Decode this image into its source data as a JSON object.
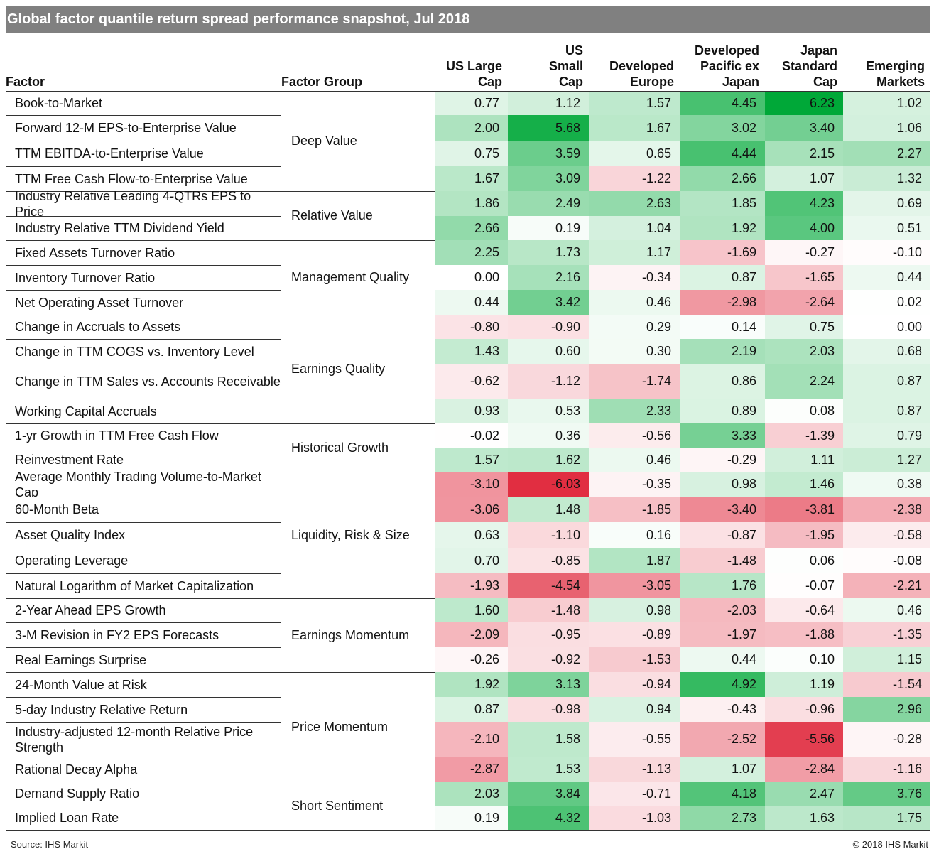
{
  "title": "Global factor quantile return spread performance snapshot, Jul 2018",
  "source": "Source: IHS Markit",
  "copyright": "© 2018 IHS Markit",
  "colors": {
    "title_bg": "#808080",
    "positive": "#00a838",
    "negative": "#e0283c",
    "neutral": "#ffffff"
  },
  "chart_data": {
    "type": "table",
    "title": "Global factor quantile return spread performance snapshot, Jul 2018",
    "columns": [
      "Factor",
      "Factor Group",
      "US Large Cap",
      "US Small Cap",
      "Developed Europe",
      "Developed Pacific ex Japan",
      "Japan Standard Cap",
      "Emerging Markets"
    ],
    "header_lines": [
      [
        "Factor"
      ],
      [
        "Factor Group"
      ],
      [
        "US Large",
        "Cap"
      ],
      [
        "US",
        "Small",
        "Cap"
      ],
      [
        "Developed",
        "Europe"
      ],
      [
        "Developed",
        "Pacific ex",
        "Japan"
      ],
      [
        "Japan",
        "Standard",
        "Cap"
      ],
      [
        "Emerging",
        "Markets"
      ]
    ],
    "groups": [
      {
        "name": "Deep Value",
        "rows": [
          {
            "factor": "Book-to-Market",
            "values": [
              0.77,
              1.12,
              1.57,
              4.45,
              6.23,
              1.02
            ]
          },
          {
            "factor": "Forward 12-M EPS-to-Enterprise Value",
            "values": [
              2.0,
              5.68,
              1.67,
              3.02,
              3.4,
              1.06
            ]
          },
          {
            "factor": "TTM EBITDA-to-Enterprise Value",
            "values": [
              0.75,
              3.59,
              0.65,
              4.44,
              2.15,
              2.27
            ]
          },
          {
            "factor": "TTM Free Cash Flow-to-Enterprise Value",
            "values": [
              1.67,
              3.09,
              -1.22,
              2.66,
              1.07,
              1.32
            ]
          }
        ]
      },
      {
        "name": "Relative Value",
        "rows": [
          {
            "factor": "Industry Relative Leading 4-QTRs EPS to Price",
            "values": [
              1.86,
              2.49,
              2.63,
              1.85,
              4.23,
              0.69
            ]
          },
          {
            "factor": "Industry Relative TTM Dividend Yield",
            "values": [
              2.66,
              0.19,
              1.04,
              1.92,
              4.0,
              0.51
            ]
          }
        ]
      },
      {
        "name": "Management Quality",
        "rows": [
          {
            "factor": "Fixed Assets Turnover Ratio",
            "values": [
              2.25,
              1.73,
              1.17,
              -1.69,
              -0.27,
              -0.1
            ]
          },
          {
            "factor": "Inventory Turnover Ratio",
            "values": [
              0.0,
              2.16,
              -0.34,
              0.87,
              -1.65,
              0.44
            ]
          },
          {
            "factor": "Net Operating Asset Turnover",
            "values": [
              0.44,
              3.42,
              0.46,
              -2.98,
              -2.64,
              0.02
            ]
          }
        ]
      },
      {
        "name": "Earnings Quality",
        "rows": [
          {
            "factor": "Change in Accruals to Assets",
            "values": [
              -0.8,
              -0.9,
              0.29,
              0.14,
              0.75,
              0.0
            ]
          },
          {
            "factor": "Change in TTM COGS vs. Inventory Level",
            "values": [
              1.43,
              0.6,
              0.3,
              2.19,
              2.03,
              0.68
            ]
          },
          {
            "factor": "Change in TTM Sales vs. Accounts Receivable",
            "values": [
              -0.62,
              -1.12,
              -1.74,
              0.86,
              2.24,
              0.87
            ]
          },
          {
            "factor": "Working Capital Accruals",
            "values": [
              0.93,
              0.53,
              2.33,
              0.89,
              0.08,
              0.87
            ]
          }
        ]
      },
      {
        "name": "Historical Growth",
        "rows": [
          {
            "factor": "1-yr Growth in TTM Free Cash Flow",
            "values": [
              -0.02,
              0.36,
              -0.56,
              3.33,
              -1.39,
              0.79
            ]
          },
          {
            "factor": "Reinvestment Rate",
            "values": [
              1.57,
              1.62,
              0.46,
              -0.29,
              1.11,
              1.27
            ]
          }
        ]
      },
      {
        "name": "Liquidity, Risk & Size",
        "rows": [
          {
            "factor": "Average Monthly Trading Volume-to-Market Cap",
            "values": [
              -3.1,
              -6.03,
              -0.35,
              0.98,
              1.46,
              0.38
            ]
          },
          {
            "factor": "60-Month Beta",
            "values": [
              -3.06,
              1.48,
              -1.85,
              -3.4,
              -3.81,
              -2.38
            ]
          },
          {
            "factor": "Asset Quality Index",
            "values": [
              0.63,
              -1.1,
              0.16,
              -0.87,
              -1.95,
              -0.58
            ]
          },
          {
            "factor": "Operating Leverage",
            "values": [
              0.7,
              -0.85,
              1.87,
              -1.48,
              0.06,
              -0.08
            ]
          },
          {
            "factor": "Natural Logarithm of Market Capitalization",
            "values": [
              -1.93,
              -4.54,
              -3.05,
              1.76,
              -0.07,
              -2.21
            ]
          }
        ]
      },
      {
        "name": "Earnings Momentum",
        "rows": [
          {
            "factor": "2-Year Ahead EPS Growth",
            "values": [
              1.6,
              -1.48,
              0.98,
              -2.03,
              -0.64,
              0.46
            ]
          },
          {
            "factor": "3-M Revision in  FY2 EPS Forecasts",
            "values": [
              -2.09,
              -0.95,
              -0.89,
              -1.97,
              -1.88,
              -1.35
            ]
          },
          {
            "factor": "Real Earnings Surprise",
            "values": [
              -0.26,
              -0.92,
              -1.53,
              0.44,
              0.1,
              1.15
            ]
          }
        ]
      },
      {
        "name": "Price Momentum",
        "rows": [
          {
            "factor": "24-Month Value at Risk",
            "values": [
              1.92,
              3.13,
              -0.94,
              4.92,
              1.19,
              -1.54
            ]
          },
          {
            "factor": "5-day Industry Relative Return",
            "values": [
              0.87,
              -0.98,
              0.94,
              -0.43,
              -0.96,
              2.96
            ]
          },
          {
            "factor": "Industry-adjusted 12-month Relative Price Strength",
            "values": [
              -2.1,
              1.58,
              -0.55,
              -2.52,
              -5.56,
              -0.28
            ]
          },
          {
            "factor": "Rational Decay Alpha",
            "values": [
              -2.87,
              1.53,
              -1.13,
              1.07,
              -2.84,
              -1.16
            ]
          }
        ]
      },
      {
        "name": "Short Sentiment",
        "rows": [
          {
            "factor": "Demand Supply Ratio",
            "values": [
              2.03,
              3.84,
              -0.71,
              4.18,
              2.47,
              3.76
            ]
          },
          {
            "factor": "Implied Loan Rate",
            "values": [
              0.19,
              4.32,
              -1.03,
              2.73,
              1.63,
              1.75
            ]
          }
        ]
      }
    ]
  }
}
